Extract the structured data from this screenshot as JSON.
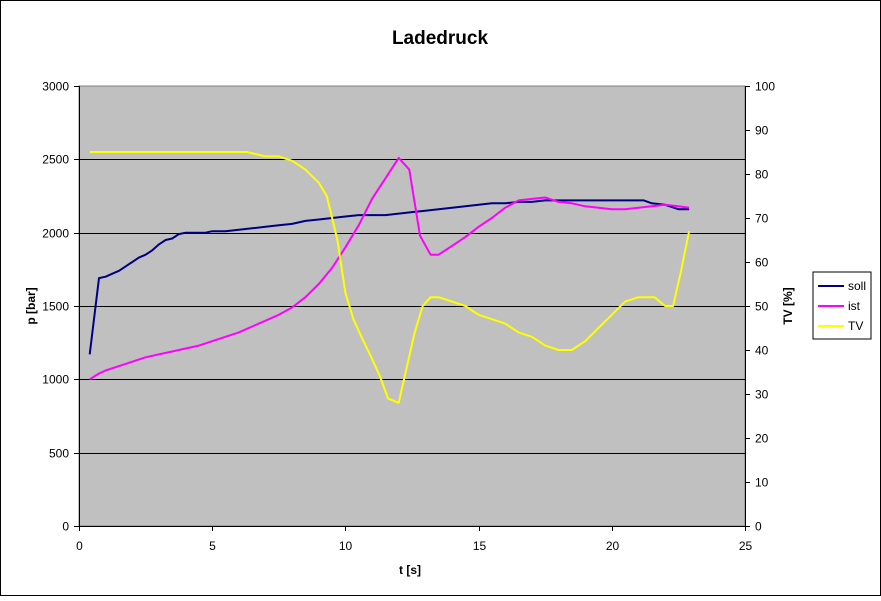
{
  "chart_data": {
    "type": "line",
    "title": "Ladedruck",
    "xlabel": "t [s]",
    "ylabel": "p [bar]",
    "y2label": "TV [%]",
    "xlim": [
      0,
      25
    ],
    "ylim": [
      0,
      3000
    ],
    "y2lim": [
      0,
      100
    ],
    "xticks": [
      0,
      5,
      10,
      15,
      20,
      25
    ],
    "yticks": [
      0,
      500,
      1000,
      1500,
      2000,
      2500,
      3000
    ],
    "y2ticks": [
      0,
      10,
      20,
      30,
      40,
      50,
      60,
      70,
      80,
      90,
      100
    ],
    "grid": true,
    "legend": "right",
    "plot_background": "#c0c0c0",
    "series": [
      {
        "name": "soll",
        "axis": "left",
        "color": "#000080",
        "x": [
          0.4,
          0.75,
          1.0,
          1.25,
          1.5,
          1.75,
          2.0,
          2.25,
          2.5,
          2.75,
          3.0,
          3.25,
          3.5,
          3.75,
          4.0,
          4.25,
          4.5,
          4.75,
          5.0,
          5.5,
          6.0,
          6.5,
          7.0,
          7.5,
          8.0,
          8.5,
          9.0,
          9.5,
          10.0,
          10.5,
          11.0,
          11.5,
          12.0,
          12.5,
          13.0,
          13.5,
          14.0,
          14.5,
          15.0,
          15.5,
          16.0,
          16.5,
          17.0,
          17.5,
          18.0,
          18.5,
          19.0,
          19.5,
          20.0,
          20.5,
          21.0,
          21.2,
          21.5,
          22.0,
          22.5,
          22.9
        ],
        "values": [
          1170,
          1690,
          1700,
          1720,
          1740,
          1770,
          1800,
          1830,
          1850,
          1880,
          1920,
          1950,
          1960,
          1990,
          2000,
          2000,
          2000,
          2000,
          2010,
          2010,
          2020,
          2030,
          2040,
          2050,
          2060,
          2080,
          2090,
          2100,
          2110,
          2120,
          2120,
          2120,
          2130,
          2140,
          2150,
          2160,
          2170,
          2180,
          2190,
          2200,
          2200,
          2210,
          2210,
          2220,
          2220,
          2220,
          2220,
          2220,
          2220,
          2220,
          2220,
          2220,
          2200,
          2190,
          2160,
          2160
        ]
      },
      {
        "name": "ist",
        "axis": "left",
        "color": "#ff00ff",
        "x": [
          0.4,
          0.75,
          1.0,
          1.5,
          2.0,
          2.5,
          3.0,
          3.5,
          4.0,
          4.5,
          5.0,
          5.5,
          6.0,
          6.5,
          7.0,
          7.5,
          8.0,
          8.5,
          9.0,
          9.5,
          10.0,
          10.5,
          11.0,
          11.5,
          12.0,
          12.4,
          12.8,
          13.2,
          13.5,
          14.0,
          14.5,
          15.0,
          15.5,
          16.0,
          16.5,
          17.0,
          17.5,
          18.0,
          18.5,
          19.0,
          19.5,
          20.0,
          20.5,
          21.0,
          21.5,
          22.0,
          22.5,
          22.9
        ],
        "values": [
          1000,
          1040,
          1060,
          1090,
          1120,
          1150,
          1170,
          1190,
          1210,
          1230,
          1260,
          1290,
          1320,
          1360,
          1400,
          1440,
          1490,
          1560,
          1650,
          1760,
          1900,
          2050,
          2230,
          2370,
          2510,
          2430,
          1980,
          1850,
          1850,
          1910,
          1970,
          2040,
          2100,
          2170,
          2220,
          2230,
          2240,
          2210,
          2200,
          2180,
          2170,
          2160,
          2160,
          2170,
          2180,
          2190,
          2180,
          2170
        ]
      },
      {
        "name": "TV",
        "axis": "right",
        "color": "#ffff00",
        "x": [
          0.4,
          1.0,
          2.0,
          3.0,
          4.0,
          5.0,
          6.0,
          6.3,
          7.0,
          7.5,
          8.0,
          8.5,
          9.0,
          9.3,
          9.7,
          10.0,
          10.3,
          10.6,
          11.0,
          11.3,
          11.6,
          12.0,
          12.3,
          12.6,
          12.9,
          13.2,
          13.5,
          14.0,
          14.5,
          15.0,
          15.5,
          16.0,
          16.5,
          17.0,
          17.5,
          18.0,
          18.5,
          19.0,
          19.5,
          20.0,
          20.5,
          21.0,
          21.3,
          21.6,
          22.0,
          22.3,
          22.6,
          22.9
        ],
        "values": [
          85,
          85,
          85,
          85,
          85,
          85,
          85,
          85,
          84,
          84,
          83,
          81,
          78,
          75,
          65,
          53,
          47,
          43,
          38,
          34,
          29,
          28,
          36,
          44,
          50,
          52,
          52,
          51,
          50,
          48,
          47,
          46,
          44,
          43,
          41,
          40,
          40,
          42,
          45,
          48,
          51,
          52,
          52,
          52,
          50,
          50,
          58,
          67
        ]
      }
    ]
  }
}
